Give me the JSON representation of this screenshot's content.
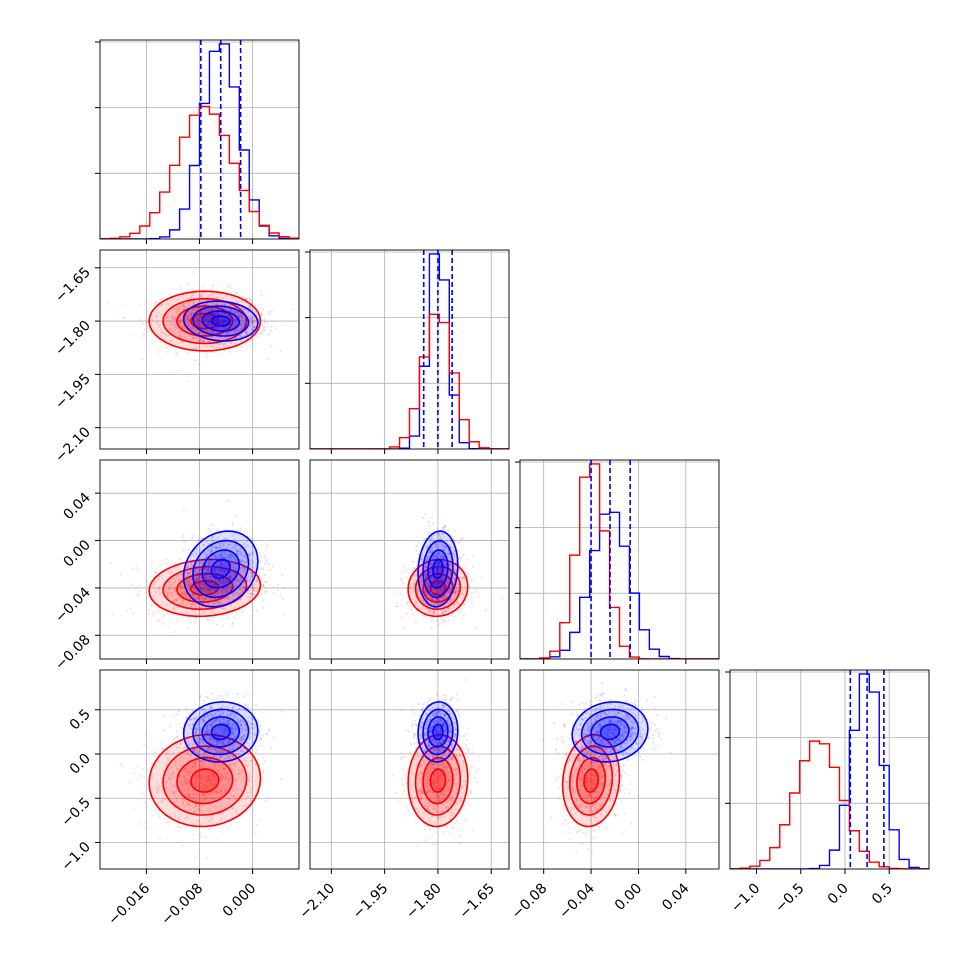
{
  "chart_data": {
    "type": "corner",
    "title": "",
    "grid": true,
    "colors": {
      "blue": "#0000ff",
      "red": "#ff0000",
      "grid": "#b0b0b0",
      "axis": "#000000"
    },
    "parameters": [
      {
        "label": "",
        "range": [
          -0.023,
          0.007
        ],
        "ticks": [
          -0.016,
          -0.008,
          0.0
        ],
        "tick_labels": [
          "−0.016",
          "−0.008",
          "0.000"
        ]
      },
      {
        "label": "",
        "range": [
          -2.16,
          -1.6
        ],
        "ticks": [
          -2.1,
          -1.95,
          -1.8,
          -1.65
        ],
        "tick_labels": [
          "−2.10",
          "−1.95",
          "−1.80",
          "−1.65"
        ]
      },
      {
        "label": "",
        "range": [
          -0.1,
          0.068
        ],
        "ticks": [
          -0.08,
          -0.04,
          0.0,
          0.04
        ],
        "tick_labels": [
          "−0.08",
          "−0.04",
          "0.00",
          "0.04"
        ]
      },
      {
        "label": "",
        "range": [
          -1.3,
          0.95
        ],
        "ticks": [
          -1.0,
          -0.5,
          0.0,
          0.5
        ],
        "tick_labels": [
          "−1.0",
          "−0.5",
          "0.0",
          "0.5"
        ]
      }
    ],
    "series": [
      {
        "color": "blue",
        "mean": [
          -0.0048,
          -1.8,
          -0.024,
          0.25
        ],
        "sd": [
          0.0028,
          0.028,
          0.016,
          0.17
        ],
        "quantiles": [
          [
            -0.0078,
            -0.0048,
            -0.0018
          ],
          [
            -1.84,
            -1.8,
            -1.76
          ],
          [
            -0.04,
            -0.024,
            -0.007
          ],
          [
            0.06,
            0.25,
            0.44
          ]
        ],
        "corr": [
          [
            1,
            -0.1,
            0.2,
            0.05
          ],
          [
            -0.1,
            1,
            0.1,
            0.05
          ],
          [
            0.2,
            0.1,
            1,
            0.1
          ],
          [
            0.05,
            0.05,
            0.1,
            1
          ]
        ]
      },
      {
        "color": "red",
        "mean": [
          -0.0072,
          -1.8,
          -0.04,
          -0.3
        ],
        "sd": [
          0.0042,
          0.042,
          0.012,
          0.26
        ],
        "quantiles": [],
        "corr": [
          [
            1,
            0.0,
            0.1,
            0.05
          ],
          [
            0.0,
            1,
            0.05,
            0.05
          ],
          [
            0.1,
            0.05,
            1,
            0.1
          ],
          [
            0.05,
            0.05,
            0.1,
            1
          ]
        ]
      }
    ]
  }
}
